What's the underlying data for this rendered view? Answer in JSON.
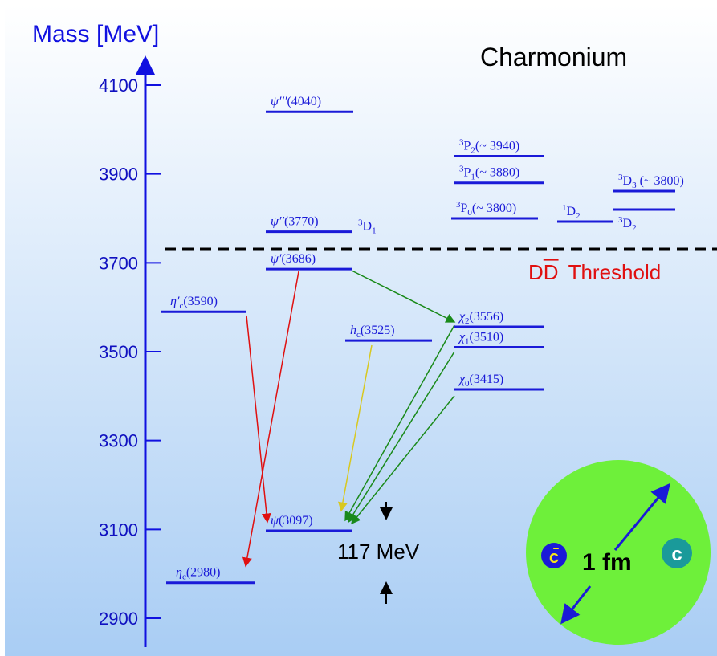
{
  "axis": {
    "title": "Mass [MeV]",
    "ylim": [
      2900,
      4100
    ],
    "yticks": [
      2900,
      3100,
      3300,
      3500,
      3700,
      3900,
      4100
    ]
  },
  "title": "Charmonium",
  "threshold": {
    "sym": "D",
    "bar": "D",
    "rest": "Threshold"
  },
  "levels": [
    {
      "sym": "η",
      "sub": "c",
      "rest": "(2980)",
      "mass": 2980
    },
    {
      "sym": "η′",
      "sub": "c",
      "rest": "(3590)",
      "mass": 3590
    },
    {
      "sym": "ψ",
      "rest": "(3097)",
      "mass": 3097
    },
    {
      "sym": "ψ′",
      "rest": "(3686)",
      "mass": 3686
    },
    {
      "sym": "ψ′′",
      "rest": "(3770)",
      "mass": 3770,
      "tag": {
        "pre": "3",
        "sym": "D",
        "sub": "1"
      }
    },
    {
      "sym": "ψ′′′",
      "rest": "(4040)",
      "mass": 4040
    },
    {
      "sym": "h",
      "sub": "c",
      "rest": "(3525)",
      "mass": 3525
    },
    {
      "sym": "χ",
      "sub": "2",
      "rest": "(3556)",
      "mass": 3556
    },
    {
      "sym": "χ",
      "sub": "1",
      "rest": "(3510)",
      "mass": 3510
    },
    {
      "sym": "χ",
      "sub": "0",
      "rest": "(3415)",
      "mass": 3415
    },
    {
      "pre": "3",
      "sym": "P",
      "sub": "2",
      "rest": "(~ 3940)",
      "mass": 3940
    },
    {
      "pre": "3",
      "sym": "P",
      "sub": "1",
      "rest": "(~ 3880)",
      "mass": 3880
    },
    {
      "pre": "3",
      "sym": "P",
      "sub": "0",
      "rest": "(~ 3800)",
      "mass": 3800
    },
    {
      "pre": "1",
      "sym": "D",
      "sub": "2"
    },
    {
      "pre": "3",
      "sym": "D",
      "sub": "2"
    },
    {
      "pre": "3",
      "sym": "D",
      "sub": "3",
      "rest": "  (~ 3800)"
    }
  ],
  "splitting": "117 MeV",
  "size": {
    "anti": "c̄",
    "label": "1 fm",
    "quark": "c"
  }
}
